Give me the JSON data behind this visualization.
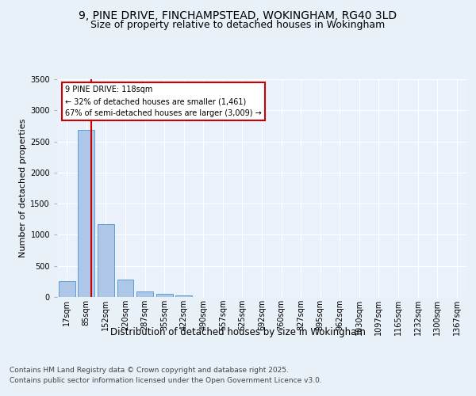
{
  "title1": "9, PINE DRIVE, FINCHAMPSTEAD, WOKINGHAM, RG40 3LD",
  "title2": "Size of property relative to detached houses in Wokingham",
  "xlabel": "Distribution of detached houses by size in Wokingham",
  "ylabel": "Number of detached properties",
  "categories": [
    "17sqm",
    "85sqm",
    "152sqm",
    "220sqm",
    "287sqm",
    "355sqm",
    "422sqm",
    "490sqm",
    "557sqm",
    "625sqm",
    "692sqm",
    "760sqm",
    "827sqm",
    "895sqm",
    "962sqm",
    "1030sqm",
    "1097sqm",
    "1165sqm",
    "1232sqm",
    "1300sqm",
    "1367sqm"
  ],
  "values": [
    255,
    2680,
    1165,
    285,
    90,
    45,
    30,
    0,
    0,
    0,
    0,
    0,
    0,
    0,
    0,
    0,
    0,
    0,
    0,
    0,
    0
  ],
  "bar_color": "#aec6e8",
  "bar_edge_color": "#5a9fd4",
  "vline_color": "#cc0000",
  "annotation_text": "9 PINE DRIVE: 118sqm\n← 32% of detached houses are smaller (1,461)\n67% of semi-detached houses are larger (3,009) →",
  "annotation_box_color": "#ffffff",
  "annotation_box_edge": "#cc0000",
  "ylim": [
    0,
    3500
  ],
  "yticks": [
    0,
    500,
    1000,
    1500,
    2000,
    2500,
    3000,
    3500
  ],
  "bg_color": "#e8f0f8",
  "plot_bg_color": "#eaf1fb",
  "grid_color": "#ffffff",
  "footnote1": "Contains HM Land Registry data © Crown copyright and database right 2025.",
  "footnote2": "Contains public sector information licensed under the Open Government Licence v3.0.",
  "title1_fontsize": 10,
  "title2_fontsize": 9,
  "xlabel_fontsize": 8.5,
  "ylabel_fontsize": 8,
  "tick_fontsize": 7,
  "annotation_fontsize": 7,
  "footnote_fontsize": 6.5
}
